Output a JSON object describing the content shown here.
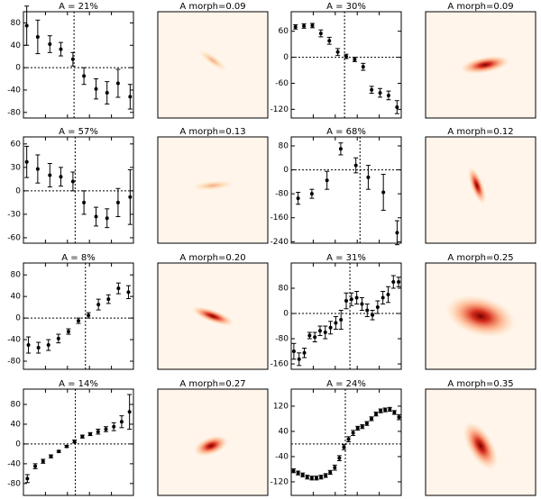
{
  "chart_data": [
    {
      "type": "errorbar",
      "title": "A = 21%",
      "x": [
        0.3,
        1.3,
        2.4,
        3.4,
        4.5,
        5.5,
        6.6,
        7.6,
        8.6,
        9.7
      ],
      "values": [
        75,
        55,
        42,
        33,
        15,
        -15,
        -38,
        -45,
        -28,
        -52
      ],
      "errors": [
        35,
        30,
        15,
        12,
        12,
        15,
        18,
        20,
        25,
        22
      ],
      "xlim": [
        0,
        10
      ],
      "vline": 4.6,
      "ylim": [
        -90,
        100
      ],
      "yticks": [
        -80,
        -40,
        0,
        40,
        80
      ]
    },
    {
      "type": "image",
      "title": "A morph=0.09"
    },
    {
      "type": "errorbar",
      "title": "A = 30%",
      "x": [
        0.5,
        1.5,
        2.5,
        3.5,
        4.5,
        5.5,
        6.5,
        7.5,
        8.5,
        9.5,
        10.5,
        11.5,
        12.5
      ],
      "values": [
        70,
        72,
        73,
        55,
        38,
        12,
        2,
        -5,
        -22,
        -75,
        -82,
        -88,
        -115
      ],
      "errors": [
        5,
        5,
        5,
        8,
        8,
        8,
        5,
        5,
        8,
        8,
        10,
        10,
        15
      ],
      "xlim": [
        0,
        13
      ],
      "vline": 6.3,
      "ylim": [
        -140,
        105
      ],
      "yticks": [
        -120,
        -60,
        0,
        60
      ]
    },
    {
      "type": "image",
      "title": "A morph=0.09"
    },
    {
      "type": "errorbar",
      "title": "A = 57%",
      "x": [
        0.3,
        1.3,
        2.4,
        3.4,
        4.5,
        5.5,
        6.6,
        7.6,
        8.6,
        9.7
      ],
      "values": [
        37,
        28,
        20,
        18,
        12,
        -15,
        -33,
        -35,
        -15,
        -8
      ],
      "errors": [
        20,
        18,
        15,
        12,
        12,
        15,
        12,
        12,
        18,
        35
      ],
      "xlim": [
        0,
        10
      ],
      "vline": 4.7,
      "ylim": [
        -67,
        69
      ],
      "yticks": [
        -60,
        -30,
        0,
        30,
        60
      ]
    },
    {
      "type": "image",
      "title": "A morph=0.13"
    },
    {
      "type": "errorbar",
      "title": "A = 68%",
      "x": [
        0.5,
        1.5,
        2.6,
        3.6,
        4.7,
        5.6,
        6.7,
        7.7
      ],
      "values": [
        -95,
        -80,
        -35,
        70,
        15,
        -25,
        -75,
        -210
      ],
      "errors": [
        20,
        15,
        30,
        20,
        25,
        40,
        60,
        40
      ],
      "xlim": [
        0,
        8
      ],
      "vline": 5.0,
      "ylim": [
        -245,
        110
      ],
      "yticks": [
        -240,
        -160,
        -80,
        0,
        80
      ]
    },
    {
      "type": "image",
      "title": "A morph=0.12"
    },
    {
      "type": "errorbar",
      "title": "A = 8%",
      "x": [
        0.5,
        1.5,
        2.5,
        3.5,
        4.5,
        5.5,
        6.5,
        7.5,
        8.5,
        9.5,
        10.5
      ],
      "values": [
        -50,
        -55,
        -50,
        -38,
        -25,
        -5,
        5,
        25,
        35,
        55,
        48
      ],
      "errors": [
        15,
        10,
        10,
        8,
        5,
        5,
        5,
        10,
        8,
        10,
        12
      ],
      "xlim": [
        0,
        11
      ],
      "vline": 6.2,
      "ylim": [
        -95,
        102
      ],
      "yticks": [
        -80,
        -40,
        0,
        40,
        80
      ]
    },
    {
      "type": "image",
      "title": "A morph=0.20"
    },
    {
      "type": "errorbar",
      "title": "A = 31%",
      "x": [
        0.5,
        1.5,
        2.5,
        3.5,
        4.5,
        5.5,
        6.5,
        7.5,
        8.5,
        9.5,
        10.5,
        11.5,
        12.5,
        13.5,
        14.5,
        15.5,
        16.5,
        17.5,
        18.5,
        19.5,
        20.5
      ],
      "values": [
        -120,
        -145,
        -125,
        -70,
        -75,
        -55,
        -60,
        -45,
        -30,
        -20,
        40,
        45,
        50,
        30,
        10,
        -5,
        20,
        50,
        60,
        100,
        100
      ],
      "errors": [
        25,
        20,
        15,
        10,
        15,
        15,
        20,
        20,
        20,
        30,
        25,
        20,
        20,
        20,
        20,
        15,
        20,
        20,
        25,
        20,
        15
      ],
      "xlim": [
        0,
        21
      ],
      "vline": 11.2,
      "ylim": [
        -177,
        160
      ],
      "yticks": [
        -160,
        -80,
        0,
        80
      ]
    },
    {
      "type": "image",
      "title": "A morph=0.25"
    },
    {
      "type": "errorbar",
      "title": "A = 14%",
      "x": [
        0.5,
        1.5,
        2.5,
        3.5,
        4.5,
        5.5,
        6.5,
        7.5,
        8.5,
        9.5,
        10.5,
        11.5,
        12.5,
        13.5
      ],
      "values": [
        -70,
        -45,
        -35,
        -25,
        -15,
        -5,
        5,
        15,
        20,
        25,
        30,
        35,
        45,
        65
      ],
      "errors": [
        8,
        5,
        4,
        3,
        2,
        2,
        3,
        3,
        3,
        5,
        5,
        8,
        12,
        35
      ],
      "xlim": [
        0,
        14
      ],
      "vline": 6.6,
      "ylim": [
        -104,
        111
      ],
      "yticks": [
        -80,
        -40,
        0,
        40,
        80
      ]
    },
    {
      "type": "image",
      "title": "A morph=0.27"
    },
    {
      "type": "errorbar",
      "title": "A = 24%",
      "x": [
        0.5,
        1.5,
        2.5,
        3.5,
        4.5,
        5.5,
        6.5,
        7.5,
        8.5,
        9.5,
        10.5,
        11.5,
        12.5,
        13.5,
        14.5,
        15.5,
        16.5,
        17.5,
        18.5,
        19.5,
        20.5,
        21.5,
        22.5,
        23.5
      ],
      "values": [
        -85,
        -92,
        -98,
        -105,
        -108,
        -108,
        -105,
        -100,
        -90,
        -75,
        -45,
        -10,
        15,
        35,
        50,
        55,
        65,
        80,
        95,
        105,
        108,
        110,
        100,
        85
      ],
      "errors": [
        6,
        6,
        6,
        6,
        6,
        6,
        6,
        6,
        6,
        8,
        8,
        8,
        8,
        8,
        6,
        6,
        6,
        6,
        6,
        6,
        6,
        6,
        6,
        8
      ],
      "xlim": [
        0,
        24
      ],
      "vline": 11.8,
      "ylim": [
        -163,
        174
      ],
      "yticks": [
        -120,
        -40,
        40,
        120
      ]
    },
    {
      "type": "image",
      "title": "A morph=0.35"
    }
  ]
}
